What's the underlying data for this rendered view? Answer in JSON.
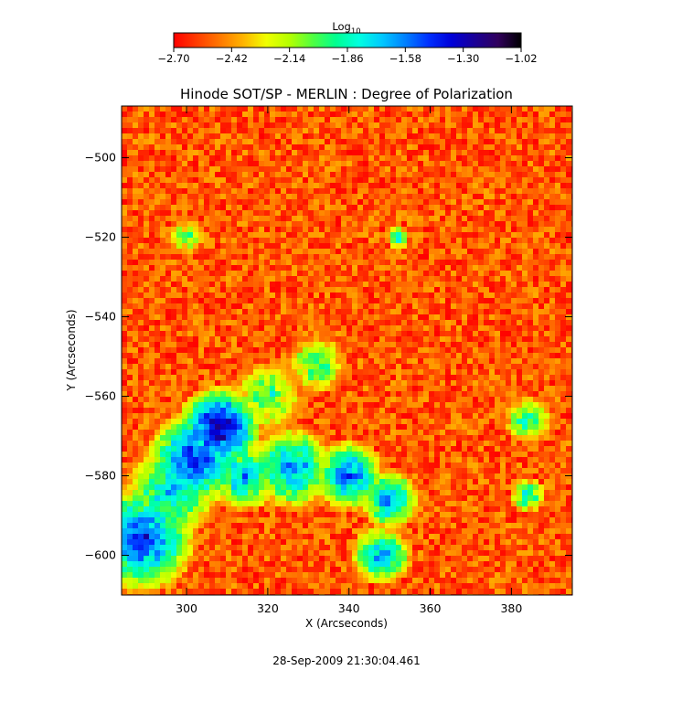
{
  "chart_data": {
    "type": "heatmap",
    "title": "Hinode SOT/SP - MERLIN : Degree of Polarization",
    "xlabel": "X (Arcseconds)",
    "ylabel": "Y (Arcseconds)",
    "xlim": [
      284,
      395
    ],
    "ylim": [
      -610,
      -487
    ],
    "x_ticks": [
      300,
      320,
      340,
      360,
      380
    ],
    "y_ticks": [
      -500,
      -520,
      -540,
      -560,
      -580,
      -600
    ],
    "x_tick_labels": [
      "300",
      "320",
      "340",
      "360",
      "380"
    ],
    "y_tick_labels": [
      "−500",
      "−520",
      "−540",
      "−560",
      "−580",
      "−600"
    ],
    "colorbar": {
      "title_base": "Log",
      "title_sub": "10",
      "range": [
        -2.7,
        -1.02
      ],
      "ticks": [
        -2.7,
        -2.42,
        -2.14,
        -1.86,
        -1.58,
        -1.3,
        -1.02
      ],
      "tick_labels": [
        "−2.70",
        "−2.42",
        "−2.14",
        "−1.86",
        "−1.58",
        "−1.30",
        "−1.02"
      ],
      "colormap": [
        "#ff0000",
        "#ff3c00",
        "#ff7800",
        "#ffb400",
        "#f0ff00",
        "#b4ff00",
        "#50ff40",
        "#00ff90",
        "#00ffe0",
        "#00c8ff",
        "#0080ff",
        "#0030ff",
        "#0000d8",
        "#1a0096",
        "#30005c",
        "#000000"
      ]
    },
    "map_data_description_regions": [
      {
        "x": 308,
        "y": -568,
        "r": 7,
        "level": -1.15
      },
      {
        "x": 302,
        "y": -576,
        "r": 8,
        "level": -1.35
      },
      {
        "x": 296,
        "y": -584,
        "r": 8,
        "level": -1.7
      },
      {
        "x": 289,
        "y": -596,
        "r": 9,
        "level": -1.4
      },
      {
        "x": 314,
        "y": -580,
        "r": 6,
        "level": -1.6
      },
      {
        "x": 326,
        "y": -578,
        "r": 7,
        "level": -1.55
      },
      {
        "x": 340,
        "y": -580,
        "r": 6,
        "level": -1.5
      },
      {
        "x": 350,
        "y": -586,
        "r": 5,
        "level": -1.55
      },
      {
        "x": 348,
        "y": -600,
        "r": 5,
        "level": -1.6
      },
      {
        "x": 332,
        "y": -552,
        "r": 5,
        "level": -1.9
      },
      {
        "x": 320,
        "y": -560,
        "r": 6,
        "level": -1.9
      },
      {
        "x": 384,
        "y": -566,
        "r": 4,
        "level": -1.85
      },
      {
        "x": 384,
        "y": -585,
        "r": 3,
        "level": -1.8
      },
      {
        "x": 300,
        "y": -520,
        "r": 3,
        "level": -1.95
      },
      {
        "x": 352,
        "y": -520,
        "r": 2,
        "level": -1.8
      }
    ]
  },
  "footer": {
    "timestamp": "28-Sep-2009 21:30:04.461"
  }
}
